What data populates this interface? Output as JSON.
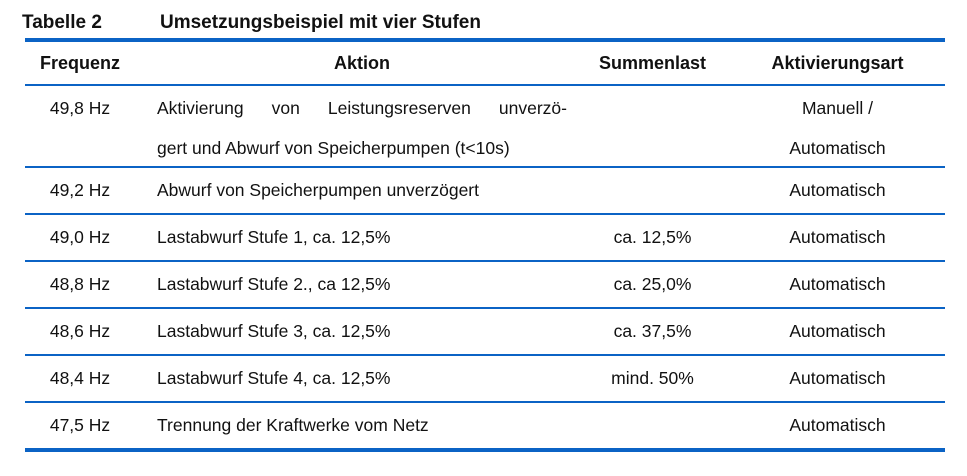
{
  "caption": {
    "label": "Tabelle 2",
    "text": "Umsetzungsbeispiel mit vier Stufen"
  },
  "table": {
    "accent_color": "#0b63c5",
    "columns": [
      "Frequenz",
      "Aktion",
      "Summenlast",
      "Aktivierungsart"
    ],
    "rows": [
      {
        "frequenz": "49,8 Hz",
        "aktion_line1": "Aktivierung von Leistungsreserven unverzö-",
        "aktion_line2": "gert und Abwurf von Speicherpumpen (t<10s)",
        "summenlast": "",
        "aktivierungsart_line1": "Manuell /",
        "aktivierungsart_line2": "Automatisch"
      },
      {
        "frequenz": "49,2 Hz",
        "aktion": "Abwurf von Speicherpumpen unverzögert",
        "summenlast": "",
        "aktivierungsart": "Automatisch"
      },
      {
        "frequenz": "49,0 Hz",
        "aktion": "Lastabwurf Stufe 1, ca. 12,5%",
        "summenlast": "ca. 12,5%",
        "aktivierungsart": "Automatisch"
      },
      {
        "frequenz": "48,8 Hz",
        "aktion": "Lastabwurf Stufe 2., ca 12,5%",
        "summenlast": "ca. 25,0%",
        "aktivierungsart": "Automatisch"
      },
      {
        "frequenz": "48,6 Hz",
        "aktion": "Lastabwurf Stufe 3, ca. 12,5%",
        "summenlast": "ca. 37,5%",
        "aktivierungsart": "Automatisch"
      },
      {
        "frequenz": "48,4 Hz",
        "aktion": "Lastabwurf Stufe 4, ca. 12,5%",
        "summenlast": "mind. 50%",
        "aktivierungsart": "Automatisch"
      },
      {
        "frequenz": "47,5 Hz",
        "aktion": "Trennung der Kraftwerke vom Netz",
        "summenlast": "",
        "aktivierungsart": "Automatisch"
      }
    ]
  }
}
